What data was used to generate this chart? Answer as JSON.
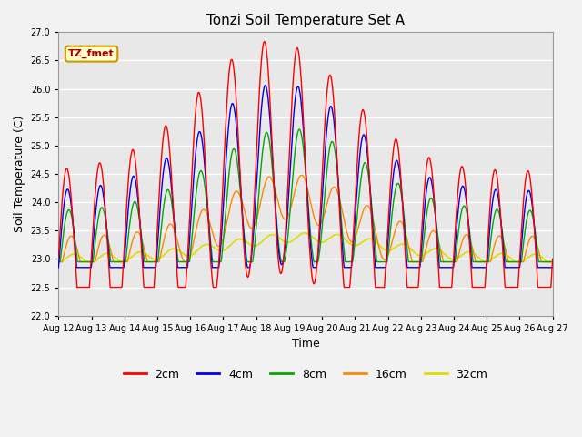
{
  "title": "Tonzi Soil Temperature Set A",
  "xlabel": "Time",
  "ylabel": "Soil Temperature (C)",
  "ylim": [
    22.0,
    27.0
  ],
  "yticks": [
    22.0,
    22.5,
    23.0,
    23.5,
    24.0,
    24.5,
    25.0,
    25.5,
    26.0,
    26.5,
    27.0
  ],
  "xtick_labels": [
    "Aug 12",
    "Aug 13",
    "Aug 14",
    "Aug 15",
    "Aug 16",
    "Aug 17",
    "Aug 18",
    "Aug 19",
    "Aug 20",
    "Aug 21",
    "Aug 22",
    "Aug 23",
    "Aug 24",
    "Aug 25",
    "Aug 26",
    "Aug 27"
  ],
  "colors": {
    "2cm": "#FF0000",
    "4cm": "#0000EE",
    "8cm": "#00AA00",
    "16cm": "#FF8800",
    "32cm": "#DDDD00"
  },
  "legend_label": "TZ_fmet",
  "fig_facecolor": "#F2F2F2",
  "axes_facecolor": "#E8E8E8",
  "grid_color": "#FFFFFF",
  "n_days": 15,
  "samples_per_day": 96
}
